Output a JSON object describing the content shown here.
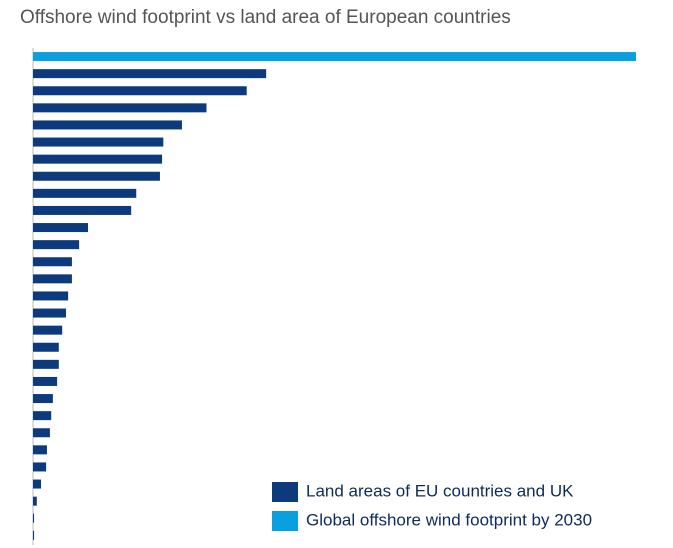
{
  "chart_data": {
    "type": "barh",
    "title": "Offshore wind footprint vs land area of European countries",
    "categories": [
      null,
      null,
      null,
      null,
      null,
      null,
      null,
      null,
      null,
      null,
      null,
      null,
      null,
      null,
      null,
      null,
      null,
      null,
      null,
      null,
      null,
      null,
      null,
      null,
      null,
      null,
      null,
      null,
      null
    ],
    "series": [
      {
        "name": "Land areas of EU countries and UK",
        "color": "#0d3a7c",
        "values": [
          null,
          551,
          505,
          410,
          352,
          308,
          305,
          300,
          244,
          232,
          130,
          109,
          92,
          92,
          83,
          78,
          69,
          61,
          61,
          57,
          47,
          43,
          40,
          33,
          31,
          19,
          9,
          2.5,
          2.5
        ]
      },
      {
        "name": "Global offshore wind footprint by 2030",
        "color": "#0aa0e0",
        "values": [
          1425,
          null,
          null,
          null,
          null,
          null,
          null,
          null,
          null,
          null,
          null,
          null,
          null,
          null,
          null,
          null,
          null,
          null,
          null,
          null,
          null,
          null,
          null,
          null,
          null,
          null,
          null,
          null,
          null
        ]
      }
    ],
    "xlim": [
      0,
      1425
    ],
    "legend": "bottom-right"
  }
}
